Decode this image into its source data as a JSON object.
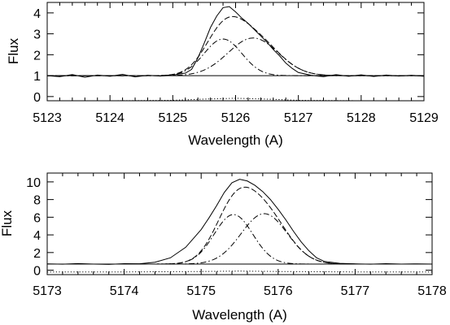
{
  "chart_data": [
    {
      "type": "line",
      "xlabel": "Wavelength (A)",
      "ylabel": "Flux",
      "xlim": [
        5123,
        5129
      ],
      "ylim": [
        -0.2,
        4.5
      ],
      "xticks": [
        5123,
        5124,
        5125,
        5126,
        5127,
        5128,
        5129
      ],
      "xtick_labels": [
        "5123",
        "5124",
        "5125",
        "5126",
        "5127",
        "5128",
        "5129"
      ],
      "yticks": [
        0,
        1,
        2,
        3,
        4
      ],
      "ytick_labels": [
        "0",
        "1",
        "2",
        "3",
        "4"
      ],
      "grid": false,
      "continuum": 1.0,
      "zero_level": 0.0,
      "gaussians": [
        {
          "amp": 1.75,
          "center": 5125.8,
          "sigma": 0.3
        },
        {
          "amp": 1.8,
          "center": 5126.28,
          "sigma": 0.4
        }
      ],
      "observed": {
        "x": [
          5123.0,
          5123.2,
          5123.4,
          5123.6,
          5123.8,
          5124.0,
          5124.2,
          5124.4,
          5124.6,
          5124.8,
          5125.0,
          5125.1,
          5125.2,
          5125.3,
          5125.4,
          5125.5,
          5125.6,
          5125.7,
          5125.8,
          5125.9,
          5126.0,
          5126.1,
          5126.2,
          5126.3,
          5126.4,
          5126.5,
          5126.6,
          5126.7,
          5126.8,
          5126.9,
          5127.0,
          5127.2,
          5127.4,
          5127.6,
          5127.8,
          5128.0,
          5128.2,
          5128.4,
          5128.6,
          5128.8,
          5129.0
        ],
        "y": [
          1.0,
          0.95,
          1.05,
          0.92,
          1.03,
          0.97,
          1.06,
          0.94,
          1.02,
          0.98,
          1.02,
          1.08,
          1.12,
          1.3,
          1.85,
          2.55,
          3.3,
          3.85,
          4.25,
          4.3,
          4.05,
          3.75,
          3.5,
          3.2,
          2.9,
          2.6,
          2.25,
          1.95,
          1.6,
          1.35,
          1.15,
          1.02,
          0.95,
          1.05,
          0.97,
          1.04,
          0.96,
          1.03,
          0.98,
          1.02,
          0.97
        ]
      },
      "residual": {
        "x": [
          5123.0,
          5124.0,
          5125.0,
          5125.5,
          5126.0,
          5126.5,
          5127.0,
          5128.0,
          5129.0
        ],
        "y": [
          -0.2,
          -0.2,
          -0.18,
          -0.12,
          -0.08,
          -0.12,
          -0.18,
          -0.2,
          -0.2
        ]
      }
    },
    {
      "type": "line",
      "xlabel": "Wavelength (A)",
      "ylabel": "Flux",
      "xlim": [
        5173,
        5178
      ],
      "ylim": [
        -0.5,
        11.0
      ],
      "xticks": [
        5173,
        5174,
        5175,
        5176,
        5177,
        5178
      ],
      "xtick_labels": [
        "5173",
        "5174",
        "5175",
        "5176",
        "5177",
        "5178"
      ],
      "yticks": [
        0,
        2,
        4,
        6,
        8,
        10
      ],
      "ytick_labels": [
        "0",
        "2",
        "4",
        "6",
        "8",
        "10"
      ],
      "grid": false,
      "continuum": 0.7,
      "zero_level": 0.0,
      "gaussians": [
        {
          "amp": 5.6,
          "center": 5175.42,
          "sigma": 0.25
        },
        {
          "amp": 5.7,
          "center": 5175.82,
          "sigma": 0.3
        }
      ],
      "observed": {
        "x": [
          5173.0,
          5173.2,
          5173.4,
          5173.6,
          5173.8,
          5174.0,
          5174.2,
          5174.4,
          5174.6,
          5174.8,
          5175.0,
          5175.1,
          5175.2,
          5175.3,
          5175.4,
          5175.5,
          5175.6,
          5175.7,
          5175.8,
          5175.9,
          5176.0,
          5176.1,
          5176.2,
          5176.3,
          5176.4,
          5176.5,
          5176.6,
          5176.8,
          5177.0,
          5177.2,
          5177.4,
          5177.6,
          5177.8,
          5178.0
        ],
        "y": [
          0.72,
          0.68,
          0.75,
          0.7,
          0.66,
          0.74,
          0.73,
          0.9,
          1.4,
          2.6,
          4.6,
          5.9,
          7.3,
          8.8,
          9.9,
          10.3,
          10.1,
          9.6,
          8.9,
          8.0,
          6.9,
          5.7,
          4.4,
          3.2,
          2.2,
          1.4,
          1.0,
          0.78,
          0.72,
          0.69,
          0.74,
          0.7,
          0.72,
          0.7
        ]
      },
      "residual": {
        "x": [
          5173.0,
          5174.0,
          5175.0,
          5175.5,
          5176.0,
          5177.0,
          5178.0
        ],
        "y": [
          -0.2,
          -0.2,
          -0.15,
          -0.1,
          -0.15,
          -0.2,
          -0.2
        ]
      }
    }
  ]
}
